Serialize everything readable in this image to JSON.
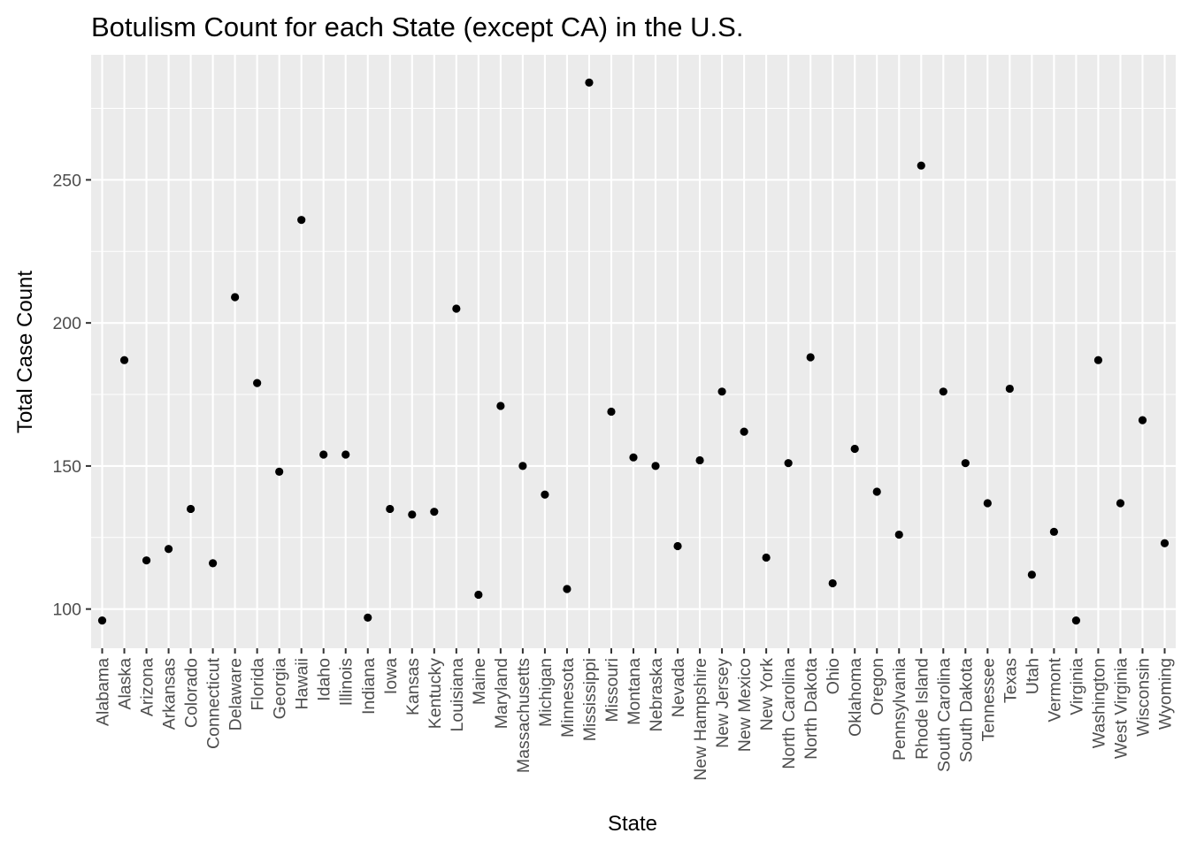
{
  "chart_data": {
    "type": "scatter",
    "title": "Botulism Count for each State (except CA) in the U.S.",
    "xlabel": "State",
    "ylabel": "Total Case Count",
    "categories": [
      "Alabama",
      "Alaska",
      "Arizona",
      "Arkansas",
      "Colorado",
      "Connecticut",
      "Delaware",
      "Florida",
      "Georgia",
      "Hawaii",
      "Idaho",
      "Illinois",
      "Indiana",
      "Iowa",
      "Kansas",
      "Kentucky",
      "Louisiana",
      "Maine",
      "Maryland",
      "Massachusetts",
      "Michigan",
      "Minnesota",
      "Mississippi",
      "Missouri",
      "Montana",
      "Nebraska",
      "Nevada",
      "New Hampshire",
      "New Jersey",
      "New Mexico",
      "New York",
      "North Carolina",
      "North Dakota",
      "Ohio",
      "Oklahoma",
      "Oregon",
      "Pennsylvania",
      "Rhode Island",
      "South Carolina",
      "South Dakota",
      "Tennessee",
      "Texas",
      "Utah",
      "Vermont",
      "Virginia",
      "Washington",
      "West Virginia",
      "Wisconsin",
      "Wyoming"
    ],
    "values": [
      96,
      187,
      117,
      121,
      135,
      116,
      209,
      179,
      148,
      236,
      154,
      154,
      97,
      135,
      133,
      134,
      205,
      105,
      171,
      150,
      140,
      107,
      284,
      169,
      153,
      150,
      122,
      152,
      176,
      162,
      118,
      151,
      188,
      109,
      156,
      141,
      126,
      255,
      176,
      151,
      137,
      177,
      112,
      127,
      96,
      187,
      137,
      166,
      123
    ],
    "yticks": [
      100,
      150,
      200,
      250
    ],
    "ylim": [
      86.3,
      293.7
    ],
    "grid": true,
    "background": "#ebebeb",
    "point_color": "#000000"
  }
}
